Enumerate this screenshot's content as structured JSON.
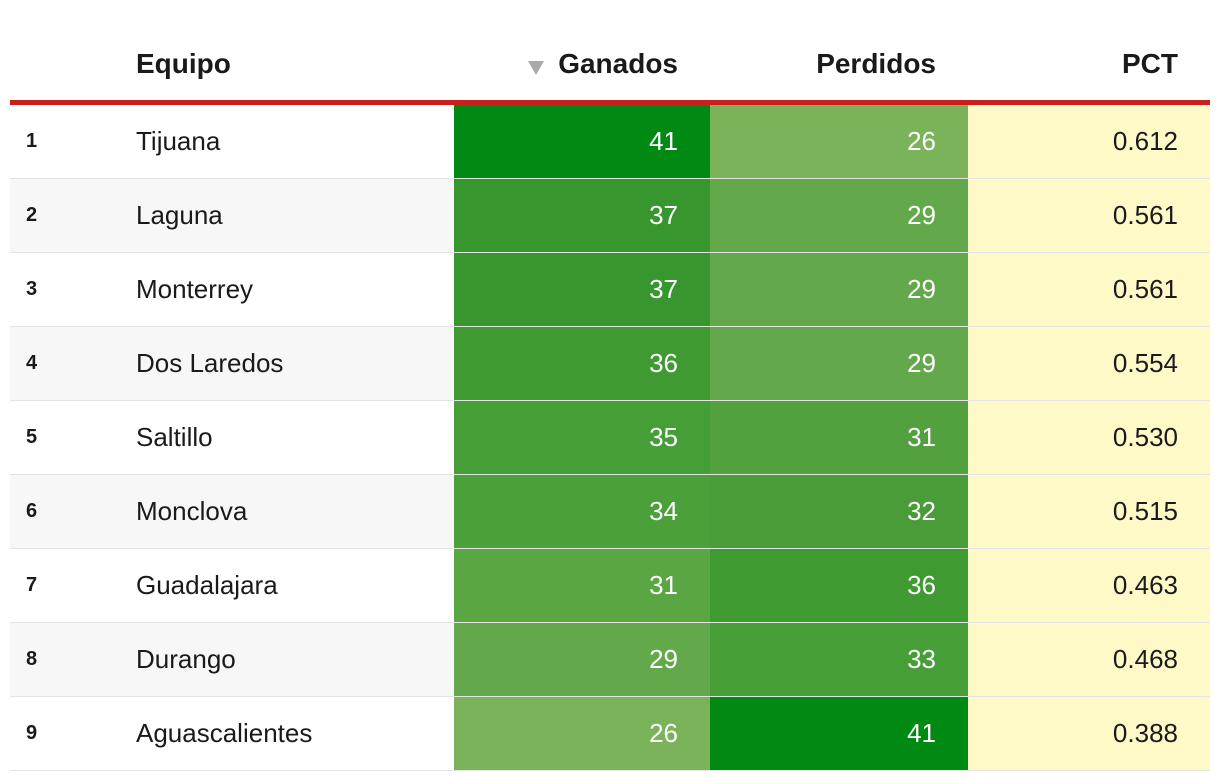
{
  "header": {
    "team": "Equipo",
    "won": "Ganados",
    "lost": "Perdidos",
    "pct": "PCT",
    "sort_icon": "triangle-down-icon"
  },
  "colors": {
    "accent_line": "#c8211b",
    "pct_background": "#fff9c8",
    "green_dark": "#008a13",
    "green_light": "#7cb45c"
  },
  "rows": [
    {
      "rank": "1",
      "team": "Tijuana",
      "won": "41",
      "lost": "26",
      "pct": "0.612",
      "won_color": "#008a13",
      "lost_color": "#7bb35b"
    },
    {
      "rank": "2",
      "team": "Laguna",
      "won": "37",
      "lost": "29",
      "pct": "0.561",
      "won_color": "#37962d",
      "lost_color": "#63a84a"
    },
    {
      "rank": "3",
      "team": "Monterrey",
      "won": "37",
      "lost": "29",
      "pct": "0.561",
      "won_color": "#37962d",
      "lost_color": "#63a84a"
    },
    {
      "rank": "4",
      "team": "Dos Laredos",
      "won": "36",
      "lost": "29",
      "pct": "0.554",
      "won_color": "#3e9a31",
      "lost_color": "#63a84a"
    },
    {
      "rank": "5",
      "team": "Saltillo",
      "won": "35",
      "lost": "31",
      "pct": "0.530",
      "won_color": "#459e36",
      "lost_color": "#52a13e"
    },
    {
      "rank": "6",
      "team": "Monclova",
      "won": "34",
      "lost": "32",
      "pct": "0.515",
      "won_color": "#4ca03a",
      "lost_color": "#4a9c38"
    },
    {
      "rank": "7",
      "team": "Guadalajara",
      "won": "31",
      "lost": "36",
      "pct": "0.463",
      "won_color": "#5aa643",
      "lost_color": "#3e9a31"
    },
    {
      "rank": "8",
      "team": "Durango",
      "won": "29",
      "lost": "33",
      "pct": "0.468",
      "won_color": "#63a84a",
      "lost_color": "#459e36"
    },
    {
      "rank": "9",
      "team": "Aguascalientes",
      "won": "26",
      "lost": "41",
      "pct": "0.388",
      "won_color": "#7bb35b",
      "lost_color": "#008a13"
    }
  ]
}
